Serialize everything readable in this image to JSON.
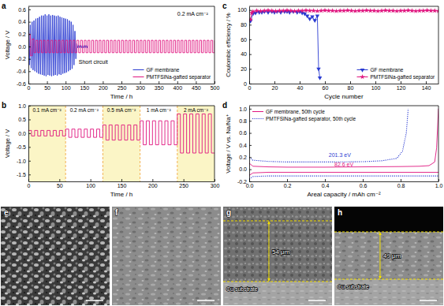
{
  "chart_data": [
    {
      "panel": "a",
      "type": "line",
      "x_label": "Time / h",
      "y_label": "Voltage / V",
      "xlim": [
        0,
        500
      ],
      "ylim": [
        -0.6,
        0.65
      ],
      "xticks": [
        0,
        50,
        100,
        150,
        200,
        250,
        300,
        350,
        400,
        450,
        500
      ],
      "yticks": [
        -0.6,
        -0.4,
        -0.2,
        {
          "value": 0,
          "label": "0.0"
        },
        0.2,
        0.4,
        0.6
      ],
      "grid": false,
      "legend": "lower right",
      "annotations": [
        {
          "text": "0.2 mA cm⁻²",
          "x": 400,
          "y": 0.5
        },
        {
          "text": "Short circuit",
          "x": 135,
          "y": -0.28
        }
      ],
      "series": [
        {
          "name": "GF membrane",
          "color": "#2a3bd1",
          "type": "line",
          "x": [
            0,
            2.5,
            5,
            7.5,
            10,
            12.5,
            15,
            17.5,
            20,
            22.5,
            25,
            27.5,
            30,
            32.5,
            35,
            37.5,
            40,
            42.5,
            45,
            47.5,
            50,
            52.5,
            55,
            57.5,
            60,
            62.5,
            65,
            67.5,
            70,
            72.5,
            75,
            77.5,
            80,
            82.5,
            85,
            87.5,
            90,
            92.5,
            95,
            97.5,
            100,
            102.5,
            105,
            107.5,
            110,
            112.5,
            115,
            117.5,
            120,
            122.5,
            125,
            127.5,
            130,
            132.5,
            135,
            137.5,
            140,
            142.5,
            145,
            147.5,
            150,
            152.5,
            155,
            157.5,
            160
          ],
          "values": [
            0.58,
            -0.3,
            0.35,
            -0.35,
            0.4,
            -0.38,
            0.42,
            -0.4,
            0.45,
            -0.42,
            0.46,
            -0.44,
            0.48,
            -0.45,
            0.5,
            -0.46,
            0.5,
            -0.47,
            0.52,
            -0.48,
            0.5,
            -0.46,
            0.52,
            -0.47,
            0.5,
            -0.48,
            0.51,
            -0.47,
            0.5,
            -0.46,
            0.49,
            -0.47,
            0.5,
            -0.45,
            0.48,
            -0.46,
            0.47,
            -0.44,
            0.46,
            -0.43,
            0.45,
            -0.42,
            0.44,
            -0.4,
            0.42,
            -0.38,
            0.4,
            -0.36,
            0.35,
            -0.3,
            0.25,
            -0.2,
            0.05,
            -0.02,
            0.02,
            -0.02,
            0.02,
            -0.02,
            0.02,
            -0.02,
            0.02,
            -0.02,
            0.02,
            -0.02,
            0.02
          ]
        },
        {
          "name": "PMTFSINa-gafted separator",
          "color": "#e0157f",
          "type": "step",
          "x": [
            0,
            5,
            10,
            15,
            20,
            25,
            30,
            35,
            40,
            45,
            50,
            55,
            60,
            65,
            70,
            75,
            80,
            85,
            90,
            95,
            100,
            105,
            110,
            115,
            120,
            125,
            130,
            135,
            140,
            145,
            150,
            155,
            160,
            165,
            170,
            175,
            180,
            185,
            190,
            195,
            200,
            205,
            210,
            215,
            220,
            225,
            230,
            235,
            240,
            245,
            250,
            255,
            260,
            265,
            270,
            275,
            280,
            285,
            290,
            295,
            300,
            305,
            310,
            315,
            320,
            325,
            330,
            335,
            340,
            345,
            350,
            355,
            360,
            365,
            370,
            375,
            380,
            385,
            390,
            395,
            400,
            405,
            410,
            415,
            420,
            425,
            430,
            435,
            440,
            445,
            450,
            455,
            460,
            465,
            470,
            475,
            480,
            485,
            490,
            495,
            500
          ],
          "values": [
            0.2,
            -0.15,
            0.12,
            -0.1,
            0.1,
            -0.1,
            0.1,
            -0.1,
            0.1,
            -0.1,
            0.1,
            -0.1,
            0.1,
            -0.1,
            0.1,
            -0.1,
            0.1,
            -0.1,
            0.1,
            -0.1,
            0.1,
            -0.1,
            0.1,
            -0.1,
            0.1,
            -0.1,
            0.1,
            -0.1,
            0.1,
            -0.1,
            0.1,
            -0.1,
            0.1,
            -0.1,
            0.1,
            -0.1,
            0.1,
            -0.1,
            0.1,
            -0.1,
            0.1,
            -0.1,
            0.1,
            -0.1,
            0.1,
            -0.1,
            0.1,
            -0.1,
            0.1,
            -0.1,
            0.1,
            -0.1,
            0.1,
            -0.1,
            0.1,
            -0.1,
            0.1,
            -0.1,
            0.1,
            -0.1,
            0.1,
            -0.1,
            0.1,
            -0.1,
            0.1,
            -0.1,
            0.1,
            -0.1,
            0.1,
            -0.1,
            0.1,
            -0.1,
            0.1,
            -0.1,
            0.1,
            -0.1,
            0.1,
            -0.1,
            0.1,
            -0.1,
            0.1,
            -0.1,
            0.1,
            -0.1,
            0.1,
            -0.1,
            0.1,
            -0.1,
            0.1,
            -0.1,
            0.1,
            -0.1,
            0.1,
            -0.1,
            0.1,
            -0.1,
            0.1,
            -0.1,
            0.1,
            -0.1,
            0.1
          ]
        }
      ]
    },
    {
      "panel": "b",
      "type": "line",
      "x_label": "Time / h",
      "y_label": "Voltage / V",
      "xlim": [
        0,
        300
      ],
      "ylim": [
        -1.75,
        1
      ],
      "xticks": [
        0,
        50,
        100,
        150,
        200,
        250,
        300
      ],
      "yticks": [
        -1.5,
        {
          "value": -1,
          "label": "-1.0"
        },
        -0.5,
        {
          "value": 0,
          "label": "0.0"
        },
        0.5,
        {
          "value": 1,
          "label": "1.0"
        }
      ],
      "grid": false,
      "segments": [
        {
          "start": 0,
          "end": 60,
          "label": "0.1 mA cm⁻²",
          "color": "#fbf5c6"
        },
        {
          "start": 60,
          "end": 120,
          "label": "0.2 mA cm⁻²",
          "color": "#ffffff"
        },
        {
          "start": 120,
          "end": 180,
          "label": "0.5 mA cm⁻²",
          "color": "#fbf5c6"
        },
        {
          "start": 180,
          "end": 240,
          "label": "1 mA cm⁻²",
          "color": "#ffffff"
        },
        {
          "start": 240,
          "end": 300,
          "label": "2 mA cm⁻²",
          "color": "#fbf5c6"
        }
      ],
      "series": [
        {
          "color": "#e0157f",
          "type": "step",
          "x": [
            0,
            5,
            10,
            15,
            20,
            25,
            30,
            35,
            40,
            45,
            50,
            55,
            60,
            65,
            70,
            75,
            80,
            85,
            90,
            95,
            100,
            105,
            110,
            115,
            120,
            125,
            130,
            135,
            140,
            145,
            150,
            155,
            160,
            165,
            170,
            175,
            180,
            185,
            190,
            195,
            200,
            205,
            210,
            215,
            220,
            225,
            230,
            235,
            240,
            245,
            250,
            255,
            260,
            265,
            270,
            275,
            280,
            285,
            290,
            295,
            300
          ],
          "values": [
            0.1,
            -0.1,
            0.1,
            -0.1,
            0.1,
            -0.1,
            0.1,
            -0.1,
            0.1,
            -0.1,
            0.1,
            -0.1,
            0.15,
            -0.15,
            0.15,
            -0.15,
            0.15,
            -0.15,
            0.15,
            -0.15,
            0.15,
            -0.15,
            0.15,
            -0.15,
            0.3,
            -0.25,
            0.3,
            -0.25,
            0.3,
            -0.25,
            0.3,
            -0.25,
            0.3,
            -0.25,
            0.3,
            -0.25,
            0.45,
            -0.42,
            0.45,
            -0.42,
            0.45,
            -0.42,
            0.45,
            -0.42,
            0.45,
            -0.42,
            0.45,
            -0.42,
            0.7,
            -0.72,
            0.7,
            -0.72,
            0.7,
            -0.72,
            0.7,
            -0.72,
            0.7,
            -0.72,
            0.7,
            -0.72,
            -0.72
          ]
        }
      ]
    },
    {
      "panel": "c",
      "type": "line",
      "x_label": "Cycle number",
      "y_label": "Coulombic efficiency / %",
      "xlim": [
        0,
        150
      ],
      "ylim": [
        0,
        105
      ],
      "xticks": [
        0,
        20,
        40,
        60,
        80,
        100,
        120,
        140
      ],
      "yticks": [
        0,
        20,
        40,
        60,
        80,
        100
      ],
      "grid": false,
      "legend": "lower right",
      "series": [
        {
          "name": "GF membrane",
          "color": "#2a3bd1",
          "marker": "triangle-down",
          "x": [
            1,
            3,
            5,
            8,
            10,
            12,
            15,
            18,
            20,
            22,
            25,
            28,
            30,
            32,
            35,
            38,
            40,
            42,
            44,
            46,
            48,
            50,
            52,
            54,
            55,
            56
          ],
          "values": [
            85,
            95,
            96,
            97,
            97,
            98,
            97,
            98,
            97,
            98,
            97,
            98,
            98,
            97,
            98,
            97,
            98,
            96,
            95,
            92,
            88,
            91,
            86,
            92,
            20,
            8
          ]
        },
        {
          "name": "PMTFSINa-gafted separator",
          "color": "#e0157f",
          "marker": "star",
          "x": [
            1,
            2,
            3,
            6,
            9,
            12,
            15,
            18,
            21,
            24,
            27,
            30,
            33,
            36,
            39,
            42,
            45,
            48,
            51,
            54,
            57,
            60,
            63,
            66,
            69,
            72,
            75,
            78,
            81,
            84,
            87,
            90,
            93,
            96,
            99,
            102,
            105,
            108,
            111,
            114,
            117,
            120,
            123,
            126,
            129,
            132,
            135,
            138,
            141,
            144,
            147,
            150
          ],
          "values": [
            87,
            96,
            98,
            99,
            98.5,
            99,
            99.5,
            99,
            98.5,
            99,
            99,
            99.5,
            99,
            98.5,
            99,
            99,
            99.5,
            99,
            99,
            98.5,
            99,
            99.5,
            99,
            99,
            98.5,
            99,
            99,
            99.5,
            99,
            98.5,
            99,
            99,
            99.5,
            99,
            99,
            98.5,
            99,
            99.5,
            99,
            99,
            98.5,
            99,
            99,
            99.5,
            99,
            98.5,
            99,
            99,
            99.5,
            99,
            99,
            98.5
          ]
        }
      ]
    },
    {
      "panel": "d",
      "type": "line",
      "x_label": "Areal capacity / mAh cm⁻²",
      "y_label": "Voltage / V vs. Na/Na⁺",
      "xlim": [
        0,
        1
      ],
      "ylim": [
        -0.2,
        1.05
      ],
      "xticks": [
        {
          "value": 0,
          "label": "0.0"
        },
        0.2,
        0.4,
        0.6,
        0.8,
        {
          "value": 1,
          "label": "1.0"
        }
      ],
      "yticks": [
        -0.2,
        {
          "value": 0,
          "label": "0.0"
        },
        0.2,
        0.4,
        0.6,
        0.8,
        {
          "value": 1,
          "label": "1.0"
        }
      ],
      "grid": false,
      "legend": "upper left",
      "annotations": [
        {
          "text": "201.3 eV",
          "x": 0.42,
          "y": 0.2,
          "color": "#2a3bd1"
        },
        {
          "text": "82.6 eV",
          "x": 0.45,
          "y": 0.05,
          "color": "#e0157f"
        }
      ],
      "series": [
        {
          "name": "GF membrane, 50th cycle",
          "color": "#e0157f",
          "line_style": "solid",
          "x": [
            0,
            0.02,
            0.1,
            0.2,
            0.4,
            0.6,
            0.8,
            0.9,
            0.95,
            0.98,
            0.99,
            1,
            1,
            0,
            0.02,
            0.1,
            0.3,
            0.5,
            0.7,
            0.9,
            1
          ],
          "values": [
            0.1,
            0.05,
            0.04,
            0.035,
            0.035,
            0.04,
            0.045,
            0.05,
            0.06,
            0.12,
            0.35,
            1,
            null,
            -0.1,
            -0.06,
            -0.05,
            -0.05,
            -0.05,
            -0.05,
            -0.05,
            -0.05
          ]
        },
        {
          "name": "PMTFSINa-gafted separator, 50th cycle",
          "color": "#2a3bd1",
          "line_style": "dotted",
          "x": [
            0,
            0.02,
            0.1,
            0.2,
            0.4,
            0.6,
            0.7,
            0.78,
            0.81,
            0.83,
            0.84,
            0.84,
            0,
            0.02,
            0.1,
            0.3,
            0.5,
            0.7,
            0.9,
            1
          ],
          "values": [
            0.2,
            0.15,
            0.13,
            0.12,
            0.12,
            0.125,
            0.14,
            0.18,
            0.3,
            0.6,
            1,
            null,
            -0.16,
            -0.12,
            -0.11,
            -0.11,
            -0.11,
            -0.11,
            -0.11,
            -0.11
          ]
        }
      ]
    }
  ],
  "images": [
    {
      "panel": "e"
    },
    {
      "panel": "f"
    },
    {
      "panel": "g",
      "thickness": "54 μm",
      "substrate": "Cu substrate"
    },
    {
      "panel": "h",
      "thickness": "49 μm",
      "substrate": "Cu substrate"
    }
  ]
}
